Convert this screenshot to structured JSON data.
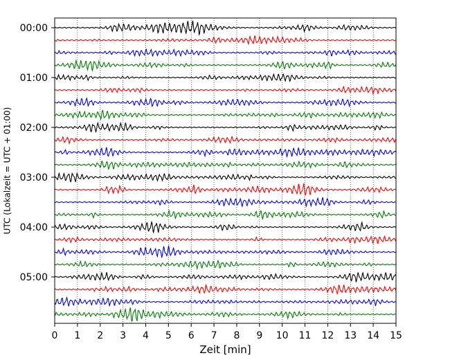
{
  "chart_data": {
    "type": "line",
    "title": "",
    "xlabel": "Zeit  [min]",
    "ylabel": "UTC (Lokalzeit = UTC + 01:00)",
    "xlim": [
      0,
      15
    ],
    "xticks": [
      "0",
      "1",
      "2",
      "3",
      "4",
      "5",
      "6",
      "7",
      "8",
      "9",
      "10",
      "11",
      "12",
      "13",
      "14",
      "15"
    ],
    "yticks": [
      "00:00",
      "01:00",
      "02:00",
      "03:00",
      "04:00",
      "05:00"
    ],
    "trace_count": 24,
    "trace_interval_min": 15,
    "trace_colors": [
      "#000000",
      "#ff0000",
      "#0000ff",
      "#008000"
    ],
    "grid": "vertical dotted",
    "legend": "none"
  }
}
